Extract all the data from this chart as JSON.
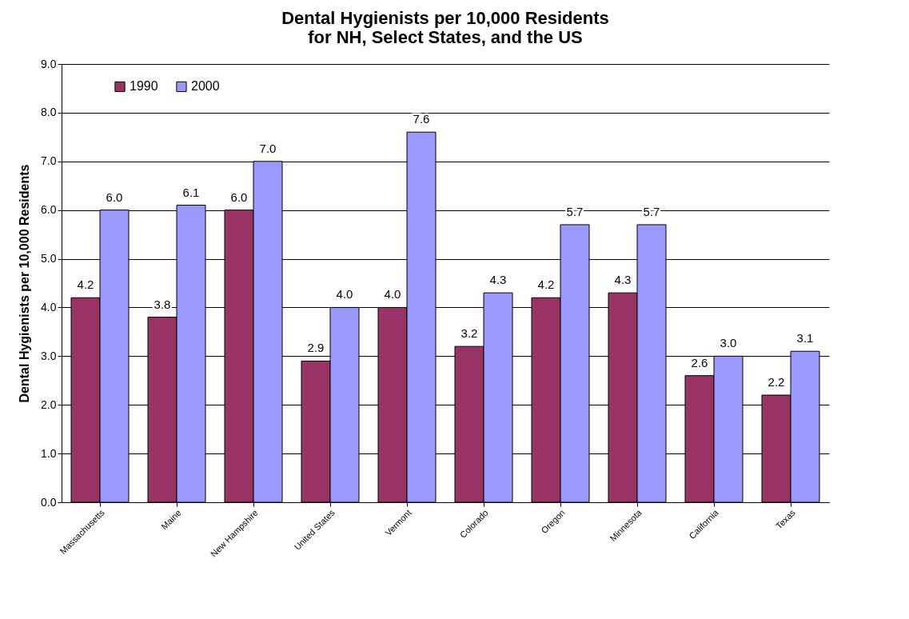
{
  "chart_data": {
    "type": "bar",
    "title": "Dental Hygienists per 10,000 Residents\nfor NH, Select States, and the US",
    "ylabel": "Dental Hygienists per 10,000 Residents",
    "categories": [
      "Massachusetts",
      "Maine",
      "New Hampshire",
      "United States",
      "Vermont",
      "Colorado",
      "Oregon",
      "Minnesota",
      "California",
      "Texas"
    ],
    "series": [
      {
        "name": "1990",
        "color": "#993366",
        "values": [
          4.2,
          3.8,
          6.0,
          2.9,
          4.0,
          3.2,
          4.2,
          4.3,
          2.6,
          2.2
        ],
        "value_labels": [
          "4.2",
          "3.8",
          "6.0",
          "2.9",
          "4.0",
          "3.2",
          "4.2",
          "4.3",
          "2.6",
          "2.2"
        ]
      },
      {
        "name": "2000",
        "color": "#9999ff",
        "values": [
          6.0,
          6.1,
          7.0,
          4.0,
          7.6,
          4.3,
          5.7,
          5.7,
          3.0,
          3.1
        ],
        "value_labels": [
          "6.0",
          "6.1",
          "7.0",
          "4.0",
          "7.6",
          "4.3",
          "5.7",
          "5.7",
          "3.0",
          "3.1"
        ]
      }
    ],
    "ylim": [
      0,
      9
    ],
    "yticks": [
      {
        "value": 0,
        "label": "0.0"
      },
      {
        "value": 1,
        "label": "1.0"
      },
      {
        "value": 2,
        "label": "2.0"
      },
      {
        "value": 3,
        "label": "3.0"
      },
      {
        "value": 4,
        "label": "4.0"
      },
      {
        "value": 5,
        "label": "5.0"
      },
      {
        "value": 6,
        "label": "6.0"
      },
      {
        "value": 7,
        "label": "7.0"
      },
      {
        "value": 8,
        "label": "8.0"
      },
      {
        "value": 9,
        "label": "9.0"
      }
    ],
    "grid": "y",
    "legend": "top left"
  }
}
